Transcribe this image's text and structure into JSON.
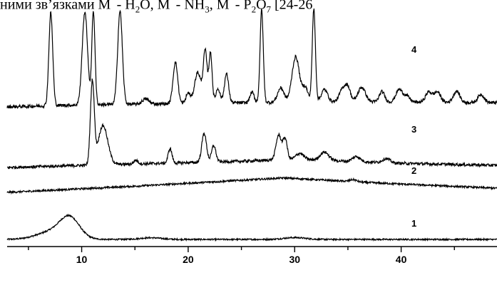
{
  "caption": {
    "t1": "ними зв",
    "t2": "язками M",
    "t3": " - H",
    "sub1": "2",
    "t4": "O, M",
    "t5": " - NH",
    "sub2": "3",
    "t6": ", M",
    "t7": " - P",
    "sub3": "2",
    "t8": "O",
    "sub4": "7",
    "t9": " [24-26"
  },
  "chart_data": {
    "type": "line",
    "title": "",
    "xlabel": "",
    "ylabel": "",
    "xlim": [
      3,
      49
    ],
    "x_ticks": [
      10,
      20,
      30,
      40
    ],
    "x_tick_labels": [
      "10",
      "20",
      "30",
      "40"
    ],
    "grid": false,
    "series": [
      {
        "name": "1",
        "baseline": 0.0,
        "background": [
          [
            3,
            0.0
          ],
          [
            49,
            0.0
          ]
        ],
        "noise": 0.35,
        "peaks": [
          [
            8.9,
            9.0,
            0.9
          ],
          [
            7.4,
            4.0,
            1.5
          ],
          [
            16.5,
            0.8,
            1.0
          ],
          [
            30.0,
            0.9,
            1.0
          ]
        ]
      },
      {
        "name": "2",
        "baseline": 0.0,
        "background": [
          [
            3,
            0.0
          ],
          [
            15,
            3.0
          ],
          [
            29,
            7.0
          ],
          [
            38,
            4.5
          ],
          [
            49,
            2.0
          ]
        ],
        "noise": 0.45,
        "peaks": [
          [
            35.5,
            1.0,
            0.3
          ]
        ]
      },
      {
        "name": "3",
        "baseline": 0.0,
        "background": [
          [
            3,
            0.0
          ],
          [
            10,
            1.0
          ],
          [
            25,
            3.0
          ],
          [
            30,
            4.0
          ],
          [
            40,
            2.0
          ],
          [
            49,
            1.0
          ]
        ],
        "noise": 0.7,
        "peaks": [
          [
            11.0,
            40.0,
            0.18
          ],
          [
            12.0,
            19.0,
            0.45
          ],
          [
            15.1,
            1.8,
            0.2
          ],
          [
            18.3,
            7.0,
            0.18
          ],
          [
            21.5,
            14.0,
            0.22
          ],
          [
            22.4,
            8.0,
            0.2
          ],
          [
            28.5,
            12.0,
            0.25
          ],
          [
            29.1,
            10.0,
            0.2
          ],
          [
            30.5,
            3.0,
            0.35
          ],
          [
            32.8,
            4.0,
            0.4
          ],
          [
            35.8,
            2.5,
            0.35
          ],
          [
            38.6,
            2.0,
            0.35
          ]
        ]
      },
      {
        "name": "4",
        "baseline": 0.0,
        "background": [
          [
            3,
            0.0
          ],
          [
            10,
            1.0
          ],
          [
            25,
            2.0
          ],
          [
            35,
            2.5
          ],
          [
            49,
            2.0
          ]
        ],
        "noise": 0.8,
        "peaks": [
          [
            7.1,
            45.0,
            0.18
          ],
          [
            10.3,
            45.0,
            0.25
          ],
          [
            11.1,
            45.0,
            0.15
          ],
          [
            13.6,
            45.0,
            0.22
          ],
          [
            16.0,
            2.5,
            0.3
          ],
          [
            18.8,
            20.0,
            0.22
          ],
          [
            20.0,
            5.0,
            0.2
          ],
          [
            20.9,
            15.0,
            0.3
          ],
          [
            21.6,
            25.0,
            0.18
          ],
          [
            22.1,
            24.0,
            0.15
          ],
          [
            22.8,
            7.0,
            0.2
          ],
          [
            23.6,
            14.0,
            0.2
          ],
          [
            26.0,
            5.0,
            0.2
          ],
          [
            26.9,
            45.0,
            0.15
          ],
          [
            28.7,
            7.0,
            0.3
          ],
          [
            30.1,
            22.0,
            0.35
          ],
          [
            31.0,
            7.0,
            0.25
          ],
          [
            31.8,
            45.0,
            0.15
          ],
          [
            32.8,
            6.0,
            0.3
          ],
          [
            34.5,
            6.0,
            0.3
          ],
          [
            35.0,
            6.5,
            0.25
          ],
          [
            36.3,
            7.0,
            0.35
          ],
          [
            38.2,
            5.0,
            0.25
          ],
          [
            39.8,
            6.0,
            0.3
          ],
          [
            40.5,
            3.0,
            0.3
          ],
          [
            42.6,
            5.0,
            0.3
          ],
          [
            43.4,
            5.0,
            0.3
          ],
          [
            45.2,
            5.5,
            0.3
          ],
          [
            47.5,
            4.0,
            0.3
          ]
        ]
      }
    ]
  }
}
